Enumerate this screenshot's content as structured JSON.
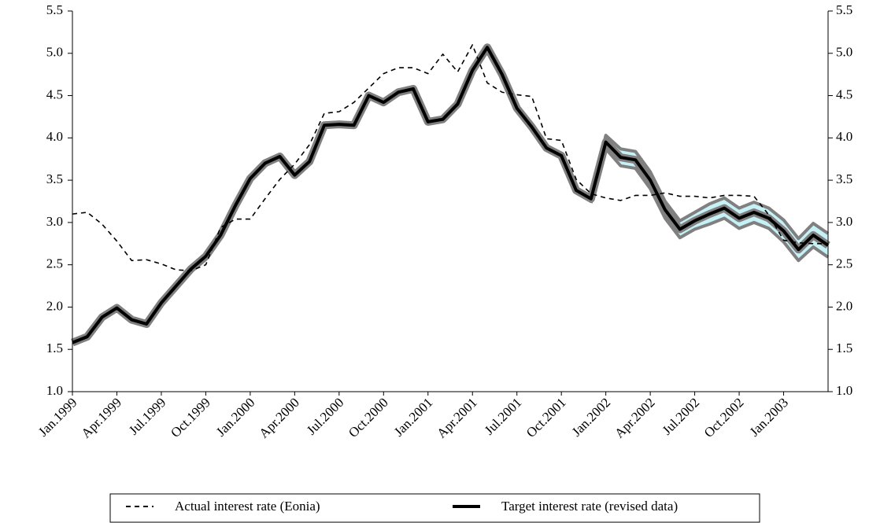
{
  "chart_data": {
    "type": "line",
    "categories": [
      "Jan.1999",
      null,
      null,
      "Apr.1999",
      null,
      null,
      "Jul.1999",
      null,
      null,
      "Oct.1999",
      null,
      null,
      "Jan.2000",
      null,
      null,
      "Apr.2000",
      null,
      null,
      "Jul.2000",
      null,
      null,
      "Oct.2000",
      null,
      null,
      "Jan.2001",
      null,
      null,
      "Apr.2001",
      null,
      null,
      "Jul.2001",
      null,
      null,
      "Oct.2001",
      null,
      null,
      "Jan.2002",
      null,
      null,
      "Apr.2002",
      null,
      null,
      "Jul.2002",
      null,
      null,
      "Oct.2002",
      null,
      null,
      "Jan.2003",
      null,
      null,
      null
    ],
    "series": [
      {
        "name": "Actual interest rate (Eonia)",
        "color": "#000000",
        "dashed": true,
        "values": [
          3.1,
          3.12,
          2.98,
          2.78,
          2.55,
          2.56,
          2.51,
          2.44,
          2.43,
          2.5,
          2.94,
          3.04,
          3.04,
          3.28,
          3.51,
          3.69,
          3.92,
          4.29,
          4.31,
          4.42,
          4.59,
          4.76,
          4.83,
          4.83,
          4.76,
          4.99,
          4.78,
          5.1,
          4.65,
          4.54,
          4.51,
          4.49,
          3.99,
          3.97,
          3.51,
          3.34,
          3.29,
          3.26,
          3.32,
          3.32,
          3.35,
          3.31,
          3.31,
          3.29,
          3.32,
          3.32,
          3.31,
          3.09,
          2.79,
          2.76,
          2.75,
          2.75
        ]
      },
      {
        "name": "Target interest rate (revised data)",
        "color": "#000000",
        "dashed": false,
        "halo_color": "#808080",
        "values": [
          1.58,
          1.65,
          1.88,
          1.99,
          1.85,
          1.8,
          2.05,
          2.25,
          2.45,
          2.6,
          2.85,
          3.2,
          3.52,
          3.7,
          3.78,
          3.56,
          3.72,
          4.15,
          4.16,
          4.15,
          4.5,
          4.42,
          4.54,
          4.58,
          4.19,
          4.22,
          4.4,
          4.8,
          5.07,
          4.75,
          4.35,
          4.13,
          3.88,
          3.79,
          3.38,
          3.28,
          3.95,
          3.77,
          3.74,
          3.5,
          3.15,
          2.92,
          3.02,
          3.1,
          3.17,
          3.05,
          3.12,
          3.05,
          2.9,
          2.68,
          2.85,
          2.73
        ]
      }
    ],
    "band": {
      "color": "#c6f1f7",
      "edge_color": "#808080",
      "upper": [
        null,
        null,
        null,
        null,
        null,
        null,
        null,
        null,
        null,
        null,
        null,
        null,
        null,
        null,
        null,
        null,
        null,
        null,
        null,
        null,
        null,
        null,
        null,
        null,
        null,
        null,
        null,
        null,
        null,
        null,
        null,
        null,
        null,
        null,
        null,
        3.33,
        4.03,
        3.87,
        3.84,
        3.6,
        3.25,
        3.02,
        3.12,
        3.22,
        3.29,
        3.17,
        3.24,
        3.17,
        3.03,
        2.81,
        2.99,
        2.87
      ],
      "lower": [
        null,
        null,
        null,
        null,
        null,
        null,
        null,
        null,
        null,
        null,
        null,
        null,
        null,
        null,
        null,
        null,
        null,
        null,
        null,
        null,
        null,
        null,
        null,
        null,
        null,
        null,
        null,
        null,
        null,
        null,
        null,
        null,
        null,
        null,
        null,
        3.23,
        3.87,
        3.67,
        3.64,
        3.4,
        3.05,
        2.82,
        2.92,
        2.98,
        3.05,
        2.93,
        3.0,
        2.93,
        2.77,
        2.55,
        2.71,
        2.59
      ]
    },
    "ylim": [
      1.0,
      5.5
    ],
    "yticks": [
      {
        "value": 1.0,
        "label": "1.0"
      },
      1.5,
      {
        "value": 2.0,
        "label": "2.0"
      },
      2.5,
      {
        "value": 3.0,
        "label": "3.0"
      },
      3.5,
      {
        "value": 4.0,
        "label": "4.0"
      },
      4.5,
      {
        "value": 5.0,
        "label": "5.0"
      },
      5.5
    ],
    "right_axis": true,
    "grid": false,
    "legend": "bottom"
  }
}
